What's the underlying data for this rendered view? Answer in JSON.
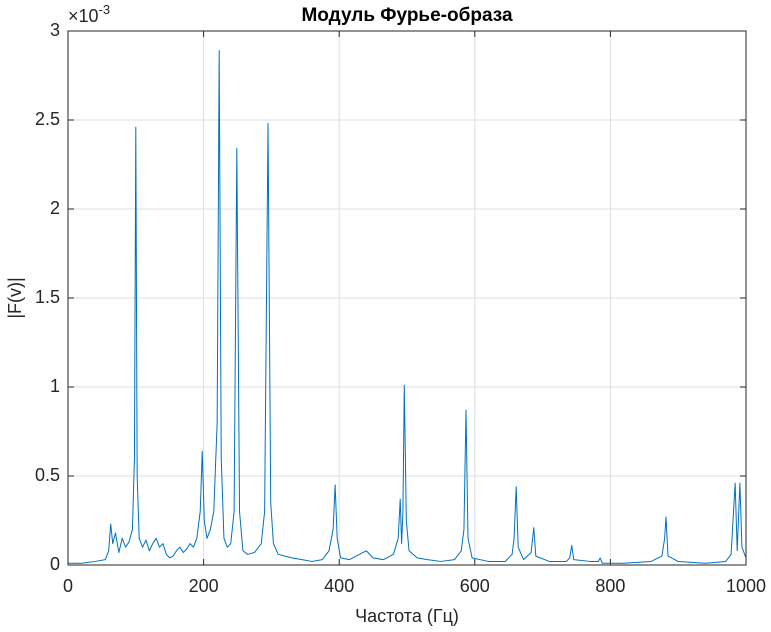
{
  "chart_data": {
    "type": "line",
    "title": "Модуль Фурье-образа",
    "x_label": "Частота (Гц)",
    "y_label": "|F(v)|",
    "y_exponent_base": "×10",
    "y_exponent": "-3",
    "color": "#0072bd",
    "grid": true,
    "xlim": [
      0,
      1000
    ],
    "xticks": [
      0,
      200,
      400,
      600,
      800,
      1000
    ],
    "ylim": [
      0,
      3
    ],
    "yticks": [
      0,
      0.5,
      1,
      1.5,
      2,
      2.5,
      3
    ],
    "x": [
      0,
      20,
      40,
      55,
      60,
      63,
      66,
      70,
      75,
      80,
      85,
      90,
      95,
      98,
      100,
      102,
      105,
      110,
      115,
      120,
      125,
      130,
      135,
      140,
      145,
      150,
      155,
      160,
      165,
      170,
      175,
      180,
      185,
      190,
      195,
      198,
      201,
      205,
      210,
      215,
      220,
      223,
      226,
      230,
      235,
      240,
      245,
      249,
      253,
      258,
      265,
      275,
      285,
      290,
      295,
      299,
      303,
      310,
      320,
      330,
      345,
      360,
      375,
      385,
      391,
      394,
      397,
      402,
      415,
      430,
      440,
      450,
      465,
      480,
      487,
      490,
      492,
      494,
      496,
      499,
      503,
      515,
      530,
      550,
      570,
      580,
      584,
      587,
      590,
      596,
      620,
      645,
      655,
      658,
      661,
      664,
      672,
      683,
      687,
      690,
      710,
      735,
      740,
      743,
      746,
      770,
      782,
      785,
      788,
      820,
      860,
      876,
      880,
      882,
      885,
      900,
      940,
      970,
      978,
      984,
      987,
      991,
      994,
      1000
    ],
    "values": [
      0.01,
      0.01,
      0.02,
      0.03,
      0.08,
      0.23,
      0.12,
      0.18,
      0.07,
      0.15,
      0.1,
      0.13,
      0.2,
      0.6,
      2.46,
      0.5,
      0.15,
      0.1,
      0.14,
      0.08,
      0.12,
      0.15,
      0.1,
      0.12,
      0.06,
      0.04,
      0.05,
      0.08,
      0.1,
      0.07,
      0.09,
      0.12,
      0.1,
      0.15,
      0.3,
      0.64,
      0.25,
      0.15,
      0.2,
      0.3,
      0.8,
      2.89,
      0.6,
      0.15,
      0.1,
      0.12,
      0.3,
      2.34,
      0.3,
      0.08,
      0.06,
      0.07,
      0.12,
      0.3,
      2.48,
      0.35,
      0.12,
      0.06,
      0.05,
      0.04,
      0.03,
      0.02,
      0.03,
      0.08,
      0.2,
      0.45,
      0.15,
      0.04,
      0.03,
      0.06,
      0.08,
      0.04,
      0.03,
      0.06,
      0.15,
      0.37,
      0.12,
      0.3,
      1.01,
      0.25,
      0.08,
      0.04,
      0.03,
      0.02,
      0.03,
      0.08,
      0.2,
      0.87,
      0.15,
      0.04,
      0.02,
      0.02,
      0.06,
      0.15,
      0.44,
      0.1,
      0.03,
      0.07,
      0.21,
      0.05,
      0.02,
      0.02,
      0.04,
      0.11,
      0.03,
      0.02,
      0.02,
      0.04,
      0.01,
      0.01,
      0.02,
      0.05,
      0.15,
      0.27,
      0.05,
      0.02,
      0.01,
      0.02,
      0.06,
      0.46,
      0.08,
      0.46,
      0.1,
      0.04
    ]
  }
}
